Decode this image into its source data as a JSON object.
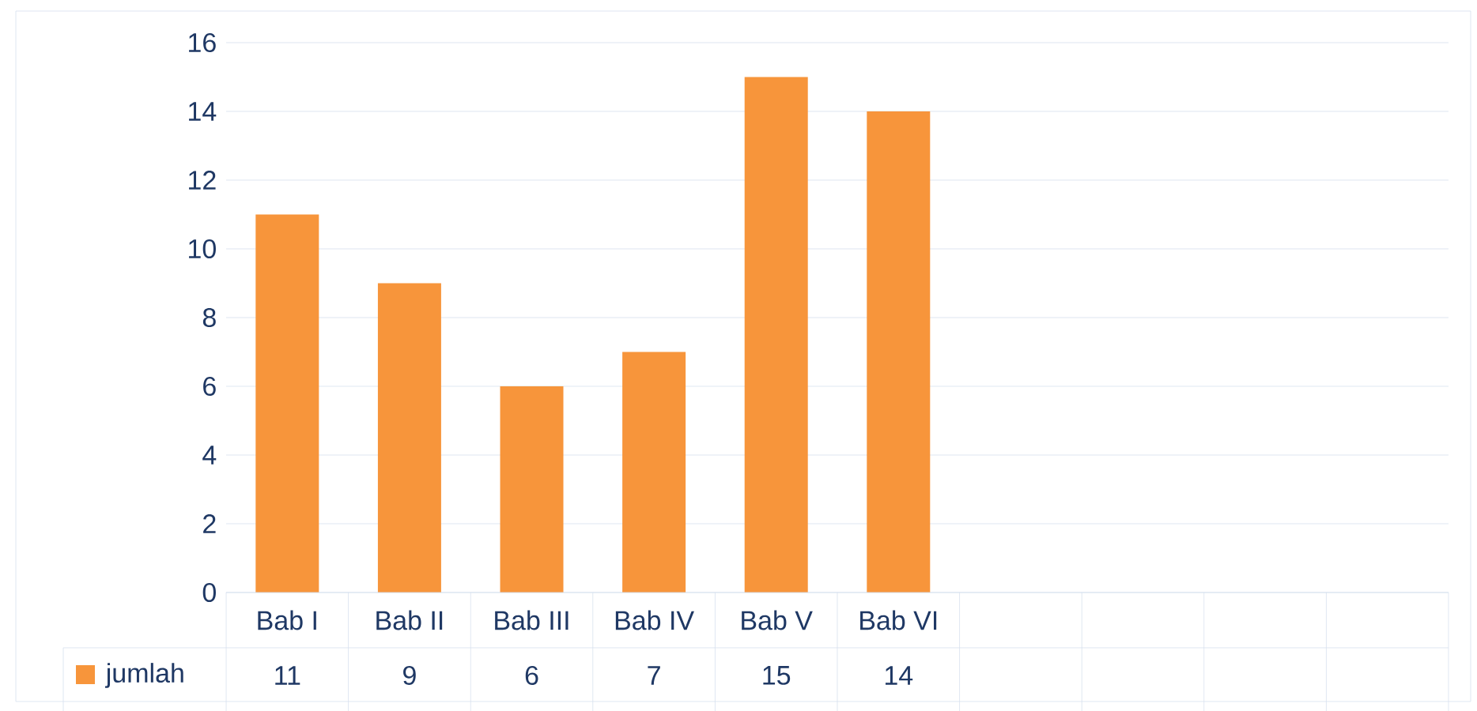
{
  "chart_data": {
    "type": "bar",
    "categories": [
      "Bab I",
      "Bab II",
      "Bab III",
      "Bab IV",
      "Bab V",
      "Bab VI",
      null,
      null,
      null,
      null
    ],
    "series": [
      {
        "name": "jumlah",
        "color": "#f7953b",
        "values": [
          11,
          9,
          6,
          7,
          15,
          14,
          null,
          null,
          null,
          null
        ]
      }
    ],
    "ylim": [
      0,
      16
    ],
    "yticks": [
      0,
      2,
      4,
      6,
      8,
      10,
      12,
      14,
      16
    ],
    "grid": "y",
    "data_labels": true,
    "legend": "bottom"
  }
}
